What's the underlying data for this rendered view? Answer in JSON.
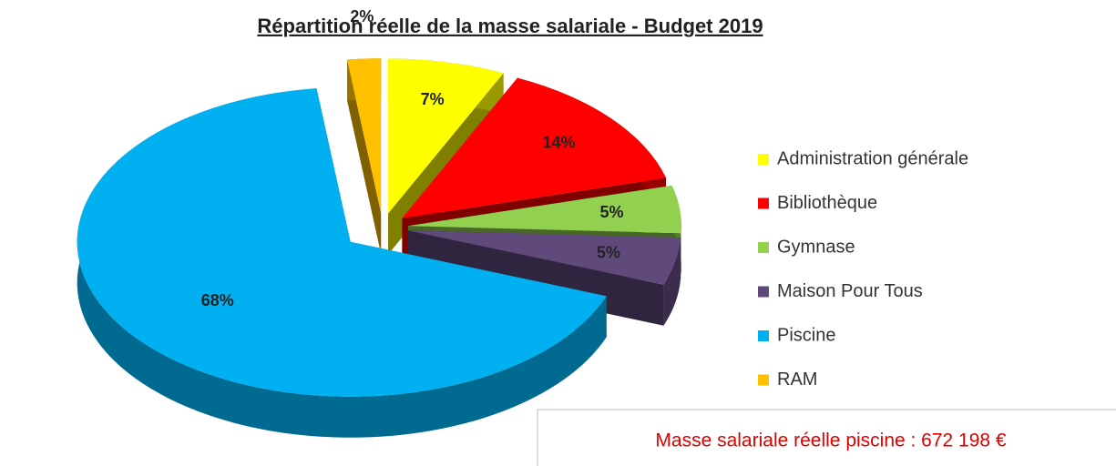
{
  "chart_data": {
    "type": "pie3d",
    "title": "Répartition réelle de la masse salariale - Budget 2019",
    "categories": [
      "Administration générale",
      "Bibliothèque",
      "Gymnase",
      "Maison Pour Tous",
      "Piscine",
      "RAM"
    ],
    "values": [
      7,
      14,
      5,
      5,
      68,
      2
    ],
    "value_labels": [
      "7%",
      "14%",
      "5%",
      "5%",
      "68%",
      "2%"
    ],
    "colors": [
      "#ffff00",
      "#ff0000",
      "#92d050",
      "#604a7b",
      "#00b0f0",
      "#ffc000"
    ],
    "legend": "right",
    "annotation": "Masse salariale réelle piscine : 672 198 €"
  }
}
